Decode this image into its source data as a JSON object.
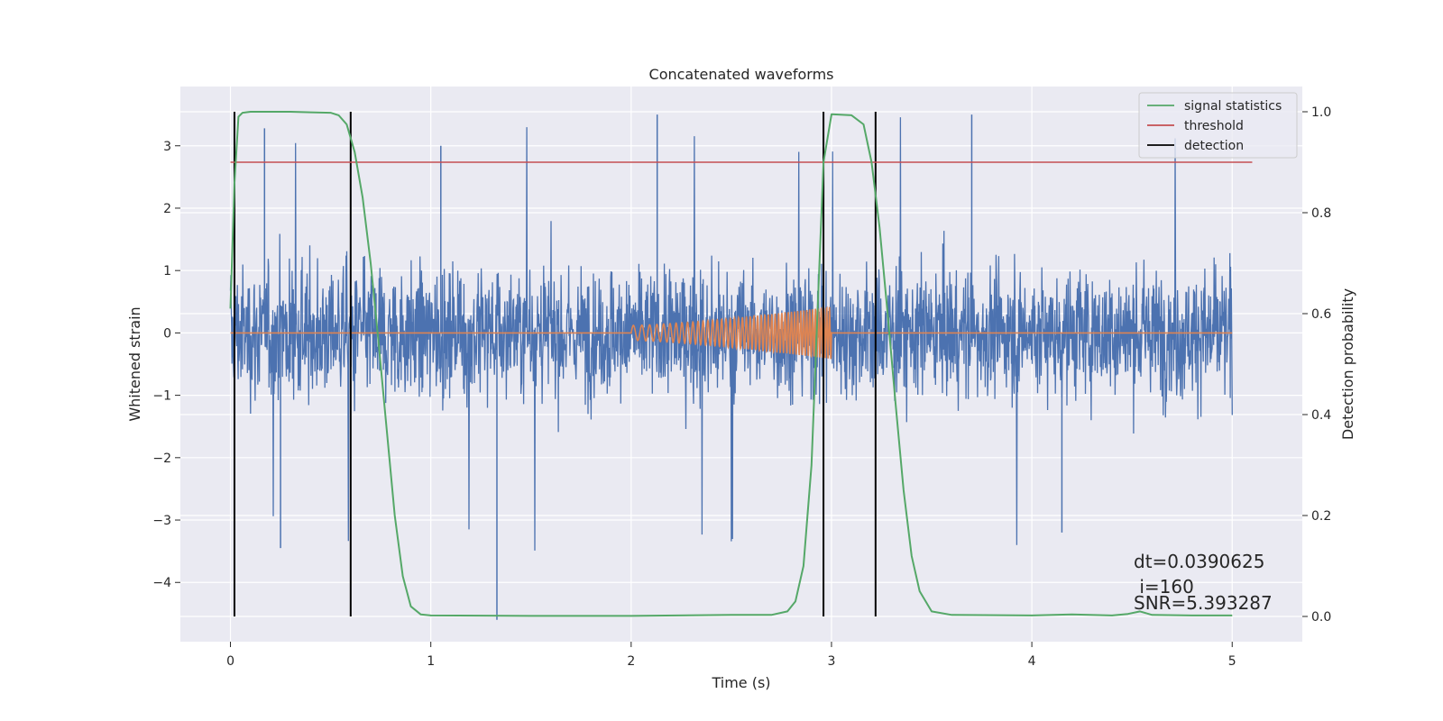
{
  "chart_data": {
    "type": "line",
    "title": "Concatenated waveforms",
    "xlabel": "Time (s)",
    "ylabel_left": "Whitened strain",
    "ylabel_right": "Detection probability",
    "xlim": [
      -0.25,
      5.35
    ],
    "ylim_left": [
      -4.95,
      3.95
    ],
    "ylim_right": [
      -0.05,
      1.05
    ],
    "x_ticks": [
      0,
      1,
      2,
      3,
      4,
      5
    ],
    "x_tick_labels": [
      "0",
      "1",
      "2",
      "3",
      "4",
      "5"
    ],
    "y_left_ticks": [
      -4,
      -3,
      -2,
      -1,
      0,
      1,
      2,
      3
    ],
    "y_left_tick_labels": [
      "−4",
      "−3",
      "−2",
      "−1",
      "0",
      "1",
      "2",
      "3"
    ],
    "y_right_ticks": [
      0.0,
      0.2,
      0.4,
      0.6,
      0.8,
      1.0
    ],
    "y_right_tick_labels": [
      "0.0",
      "0.2",
      "0.4",
      "0.6",
      "0.8",
      "1.0"
    ],
    "grid": true,
    "legend_position": "top-right",
    "series": [
      {
        "name": "",
        "kind": "noise",
        "axis": "left",
        "color": "#4C72B0",
        "x_range": [
          0,
          5
        ],
        "typical_range": [
          -2.2,
          2.3
        ],
        "max": 3.5,
        "min": -4.6
      },
      {
        "name": "",
        "kind": "chirp",
        "axis": "left",
        "color": "#DD8452",
        "x_range": [
          0,
          5
        ],
        "chirp_start": 2.0,
        "chirp_end": 3.0,
        "amplitude_start": 0.12,
        "amplitude_end": 0.42
      },
      {
        "name": "signal statistics",
        "axis": "right",
        "color": "#55A868",
        "x": [
          0,
          0.02,
          0.04,
          0.06,
          0.1,
          0.2,
          0.3,
          0.4,
          0.5,
          0.54,
          0.58,
          0.62,
          0.66,
          0.7,
          0.74,
          0.78,
          0.82,
          0.86,
          0.9,
          0.95,
          1.0,
          1.5,
          2.0,
          2.5,
          2.7,
          2.78,
          2.82,
          2.86,
          2.9,
          2.93,
          2.96,
          3.0,
          3.1,
          3.16,
          3.2,
          3.24,
          3.28,
          3.32,
          3.36,
          3.4,
          3.44,
          3.5,
          3.6,
          4.0,
          4.2,
          4.4,
          4.48,
          4.54,
          4.6,
          4.8,
          5.0
        ],
        "y": [
          0.61,
          0.86,
          0.99,
          0.998,
          1.0,
          1.0,
          1.0,
          0.999,
          0.998,
          0.993,
          0.975,
          0.92,
          0.83,
          0.7,
          0.54,
          0.37,
          0.2,
          0.08,
          0.02,
          0.004,
          0.002,
          0.001,
          0.001,
          0.003,
          0.003,
          0.01,
          0.03,
          0.1,
          0.3,
          0.6,
          0.9,
          0.995,
          0.993,
          0.975,
          0.9,
          0.77,
          0.6,
          0.42,
          0.25,
          0.12,
          0.05,
          0.01,
          0.003,
          0.002,
          0.004,
          0.002,
          0.005,
          0.01,
          0.003,
          0.002,
          0.002
        ]
      },
      {
        "name": "threshold",
        "axis": "right",
        "color": "#C44E52",
        "x": [
          0,
          5.1
        ],
        "y": [
          0.9,
          0.9
        ]
      },
      {
        "name": "detection",
        "axis": "right",
        "color": "#000000",
        "x_positions": [
          0.02,
          0.6,
          2.96,
          3.22
        ],
        "y_range": [
          0.0,
          1.0
        ]
      }
    ],
    "annotations": [
      "dt=0.0390625",
      " i=160",
      "SNR=5.393287"
    ]
  }
}
